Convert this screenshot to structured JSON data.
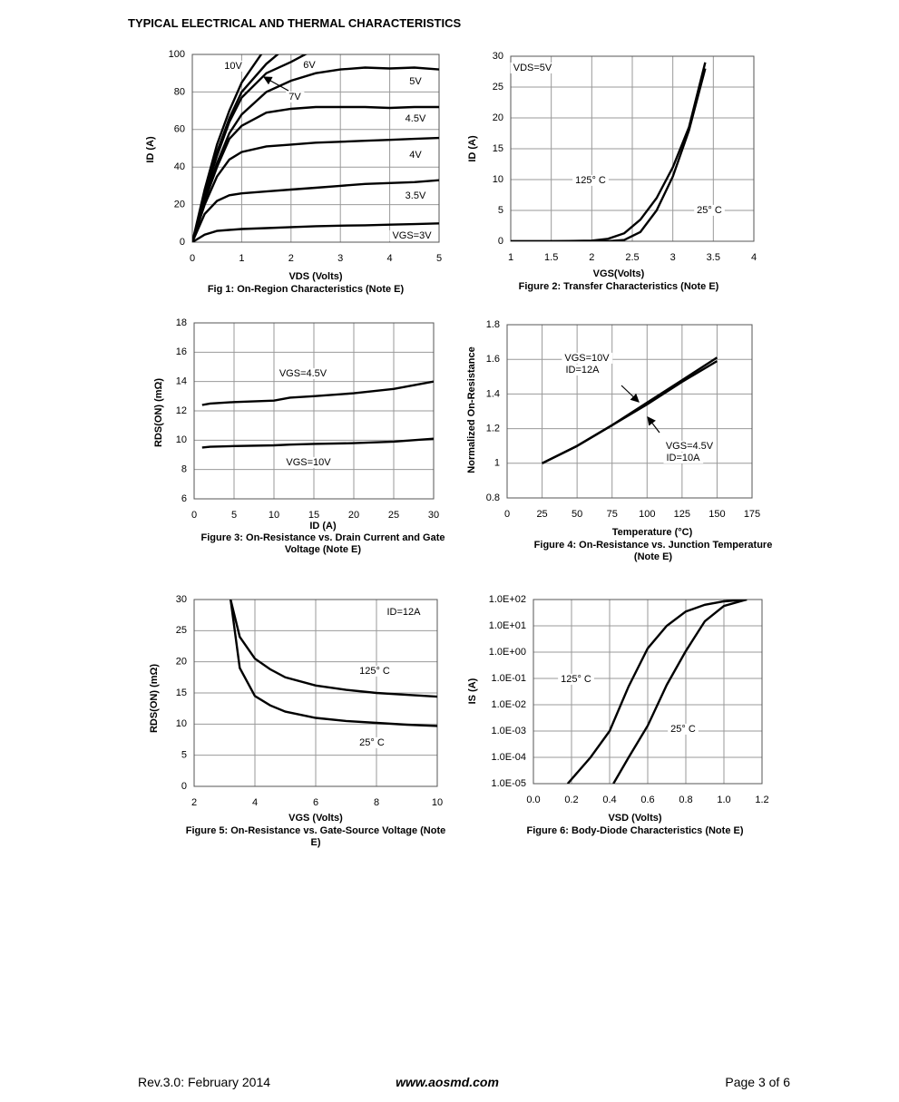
{
  "header": {
    "title": "TYPICAL ELECTRICAL AND THERMAL CHARACTERISTICS"
  },
  "chart_data": [
    {
      "type": "line",
      "title": "Fig 1: On-Region Characteristics (Note E)",
      "xlabel": "VDS (Volts)",
      "ylabel": "ID (A)",
      "x": [
        0,
        0.25,
        0.5,
        0.75,
        1,
        1.5,
        2,
        2.5,
        3,
        3.5,
        4,
        4.5,
        5
      ],
      "xlim": [
        0,
        5
      ],
      "xticks": [
        0,
        1,
        2,
        3,
        4,
        5
      ],
      "ylim": [
        0,
        100
      ],
      "yticks": [
        0,
        20,
        40,
        60,
        80,
        100
      ],
      "grid": true,
      "series": [
        {
          "name": "VGS=3V",
          "color": "#000000",
          "values": [
            0,
            4,
            6,
            6.5,
            7,
            7.5,
            8,
            8.5,
            8.8,
            9,
            9.3,
            9.6,
            10
          ]
        },
        {
          "name": "3.5V",
          "color": "#000000",
          "values": [
            0,
            15,
            22,
            25,
            26,
            27,
            28,
            29,
            30,
            31,
            31.5,
            32,
            33
          ]
        },
        {
          "name": "4V",
          "color": "#000000",
          "values": [
            0,
            20,
            35,
            44,
            48,
            51,
            52,
            53,
            53.5,
            54,
            54.5,
            55,
            55.5
          ]
        },
        {
          "name": "4.5V",
          "color": "#000000",
          "values": [
            0,
            22,
            40,
            55,
            62,
            69,
            71,
            72,
            72,
            72,
            71.5,
            72,
            72
          ]
        },
        {
          "name": "5V",
          "color": "#000000",
          "values": [
            0,
            23,
            42,
            58,
            68,
            80,
            86,
            90,
            92,
            93,
            92.5,
            93,
            92
          ]
        },
        {
          "name": "6V",
          "color": "#000000",
          "values": [
            0,
            25,
            46,
            64,
            77,
            90,
            96,
            103,
            null,
            null,
            null,
            null,
            null
          ]
        },
        {
          "name": "7V",
          "color": "#000000",
          "values": [
            0,
            26,
            48,
            66,
            80,
            95,
            106,
            null,
            null,
            null,
            null,
            null,
            null
          ]
        },
        {
          "name": "10V",
          "color": "#000000",
          "values": [
            0,
            28,
            52,
            70,
            85,
            104,
            null,
            null,
            null,
            null,
            null,
            null,
            null
          ]
        }
      ]
    },
    {
      "type": "line",
      "title": "Figure 2: Transfer Characteristics (Note E)",
      "xlabel": "VGS(Volts)",
      "ylabel": "ID (A)",
      "annotations": [
        "VDS=5V"
      ],
      "x": [
        1,
        1.5,
        2,
        2.2,
        2.4,
        2.6,
        2.8,
        3,
        3.2,
        3.4
      ],
      "xlim": [
        1,
        4
      ],
      "xticks": [
        1,
        1.5,
        2,
        2.5,
        3,
        3.5,
        4
      ],
      "ylim": [
        0,
        30
      ],
      "yticks": [
        0,
        5,
        10,
        15,
        20,
        25,
        30
      ],
      "grid": true,
      "series": [
        {
          "name": "125° C",
          "color": "#000000",
          "values": [
            0,
            0,
            0.1,
            0.4,
            1.3,
            3.5,
            7,
            12,
            18.5,
            29
          ]
        },
        {
          "name": "25° C",
          "color": "#000000",
          "values": [
            0,
            0,
            0,
            0.02,
            0.2,
            1.5,
            5,
            10.5,
            18,
            28
          ]
        }
      ]
    },
    {
      "type": "line",
      "title": "Figure 3: On-Resistance vs. Drain Current and Gate Voltage (Note E)",
      "xlabel": "ID (A)",
      "ylabel": "RDS(ON) (mΩ)",
      "x": [
        1,
        2,
        5,
        10,
        12,
        15,
        20,
        25,
        30
      ],
      "xlim": [
        0,
        30
      ],
      "xticks": [
        0,
        5,
        10,
        15,
        20,
        25,
        30
      ],
      "ylim": [
        6,
        18
      ],
      "yticks": [
        6,
        8,
        10,
        12,
        14,
        16,
        18
      ],
      "grid": true,
      "series": [
        {
          "name": "VGS=4.5V",
          "color": "#000000",
          "values": [
            12.4,
            12.5,
            12.6,
            12.7,
            12.9,
            13,
            13.2,
            13.5,
            14
          ]
        },
        {
          "name": "VGS=10V",
          "color": "#000000",
          "values": [
            9.5,
            9.55,
            9.6,
            9.65,
            9.7,
            9.75,
            9.8,
            9.9,
            10.1
          ]
        }
      ]
    },
    {
      "type": "line",
      "title": "Figure 4: On-Resistance vs. Junction Temperature (Note E)",
      "xlabel": "Temperature (°C)",
      "ylabel": "Normalized On-Resistance",
      "annotations": [
        "ID=12A",
        "ID=10A"
      ],
      "x": [
        25,
        50,
        75,
        100,
        125,
        150
      ],
      "xlim": [
        0,
        175
      ],
      "xticks": [
        0,
        25,
        50,
        75,
        100,
        125,
        150,
        175
      ],
      "ylim": [
        0.8,
        1.8
      ],
      "yticks": [
        0.8,
        1,
        1.2,
        1.4,
        1.6,
        1.8
      ],
      "grid": true,
      "series": [
        {
          "name": "VGS=10V",
          "color": "#000000",
          "values": [
            1,
            1.1,
            1.22,
            1.35,
            1.48,
            1.61
          ]
        },
        {
          "name": "VGS=4.5V",
          "color": "#000000",
          "values": [
            1,
            1.1,
            1.22,
            1.34,
            1.47,
            1.59
          ]
        }
      ]
    },
    {
      "type": "line",
      "title": "Figure 5: On-Resistance vs. Gate-Source Voltage (Note E)",
      "xlabel": "VGS (Volts)",
      "ylabel": "RDS(ON) (mΩ)",
      "annotations": [
        "ID=12A"
      ],
      "x": [
        3.2,
        3.5,
        4,
        4.5,
        5,
        6,
        7,
        8,
        9,
        10
      ],
      "xlim": [
        2,
        10
      ],
      "xticks": [
        2,
        4,
        6,
        8,
        10
      ],
      "ylim": [
        0,
        30
      ],
      "yticks": [
        0,
        5,
        10,
        15,
        20,
        25,
        30
      ],
      "grid": true,
      "series": [
        {
          "name": "125° C",
          "color": "#000000",
          "values": [
            30,
            24,
            20.5,
            18.8,
            17.5,
            16.2,
            15.5,
            15,
            14.7,
            14.4
          ]
        },
        {
          "name": "25° C",
          "color": "#000000",
          "values": [
            30,
            19,
            14.5,
            13,
            12,
            11,
            10.5,
            10.2,
            9.9,
            9.7
          ]
        }
      ]
    },
    {
      "type": "line",
      "title": "Figure 6: Body-Diode Characteristics (Note E)",
      "xlabel": "VSD (Volts)",
      "ylabel": "IS (A)",
      "yscale": "log",
      "xlim": [
        0,
        1.2
      ],
      "xticks": [
        {
          "value": 0,
          "label": "0.0"
        },
        {
          "value": 0.2,
          "label": "0.2"
        },
        {
          "value": 0.4,
          "label": "0.4"
        },
        {
          "value": 0.6,
          "label": "0.6"
        },
        {
          "value": 0.8,
          "label": "0.8"
        },
        {
          "value": 1,
          "label": "1.0"
        },
        {
          "value": 1.2,
          "label": "1.2"
        }
      ],
      "ylim": [
        1e-05,
        100
      ],
      "yticks": [
        {
          "value": 1e-05,
          "label": "1.0E-05"
        },
        {
          "value": 0.0001,
          "label": "1.0E-04"
        },
        {
          "value": 0.001,
          "label": "1.0E-03"
        },
        {
          "value": 0.01,
          "label": "1.0E-02"
        },
        {
          "value": 0.1,
          "label": "1.0E-01"
        },
        {
          "value": 1,
          "label": "1.0E+00"
        },
        {
          "value": 10,
          "label": "1.0E+01"
        },
        {
          "value": 100,
          "label": "1.0E+02"
        }
      ],
      "grid": true,
      "series": [
        {
          "name": "125° C",
          "color": "#000000",
          "x": [
            0.18,
            0.3,
            0.4,
            0.5,
            0.6,
            0.7,
            0.8,
            0.9,
            1,
            1.12
          ],
          "values": [
            1e-05,
            0.0001,
            0.001,
            0.05,
            1.4,
            10,
            35,
            63,
            85,
            100
          ]
        },
        {
          "name": "25° C",
          "color": "#000000",
          "x": [
            0.42,
            0.5,
            0.6,
            0.7,
            0.8,
            0.9,
            1,
            1.12
          ],
          "values": [
            1e-05,
            0.0001,
            0.0016,
            0.057,
            1.1,
            15,
            57,
            100
          ]
        }
      ]
    }
  ],
  "footer": {
    "revision": "Rev.3.0: February 2014",
    "website": "www.aosmd.com",
    "page": "Page 3 of 6"
  }
}
